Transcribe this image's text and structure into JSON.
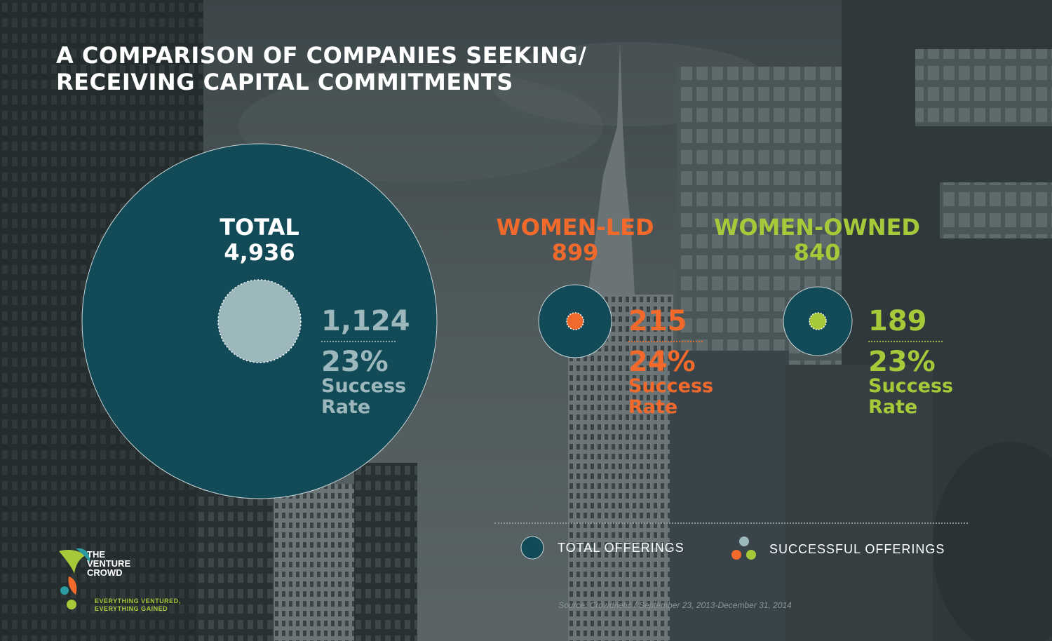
{
  "title": {
    "line1": "A COMPARISON OF COMPANIES SEEKING/",
    "line2": "RECEIVING CAPITAL COMMITMENTS"
  },
  "colors": {
    "total_circle": "#124a58",
    "total_success": "#9db8bc",
    "women_led": "#f26a2b",
    "women_owned": "#a6c93a",
    "text_light": "#ffffff",
    "total_stat_text": "#9db8bc"
  },
  "chart_data": {
    "type": "bubble",
    "groups": [
      {
        "name": "TOTAL",
        "total_label": "4,936",
        "total": 4936,
        "successful_label": "1,124",
        "successful": 1124,
        "success_rate_label": "23%",
        "success_rate": 23,
        "rate_caption_line1": "Success",
        "rate_caption_line2": "Rate"
      },
      {
        "name": "WOMEN-LED",
        "total_label": "899",
        "total": 899,
        "successful_label": "215",
        "successful": 215,
        "success_rate_label": "24%",
        "success_rate": 24,
        "rate_caption_line1": "Success",
        "rate_caption_line2": "Rate"
      },
      {
        "name": "WOMEN-OWNED",
        "total_label": "840",
        "total": 840,
        "successful_label": "189",
        "successful": 189,
        "success_rate_label": "23%",
        "success_rate": 23,
        "rate_caption_line1": "Success",
        "rate_caption_line2": "Rate"
      }
    ],
    "legend": {
      "total_offerings": "TOTAL OFFERINGS",
      "successful_offerings": "SUCCESSFUL OFFERINGS"
    },
    "source": "Source: Crowdnetic  / September 23, 2013-December 31, 2014"
  },
  "logo": {
    "line1": "THE",
    "line2": "VENTURE",
    "line3": "CROWD",
    "tagline1": "EVERYTHING VENTURED,",
    "tagline2": "EVERYTHING GAINED"
  }
}
